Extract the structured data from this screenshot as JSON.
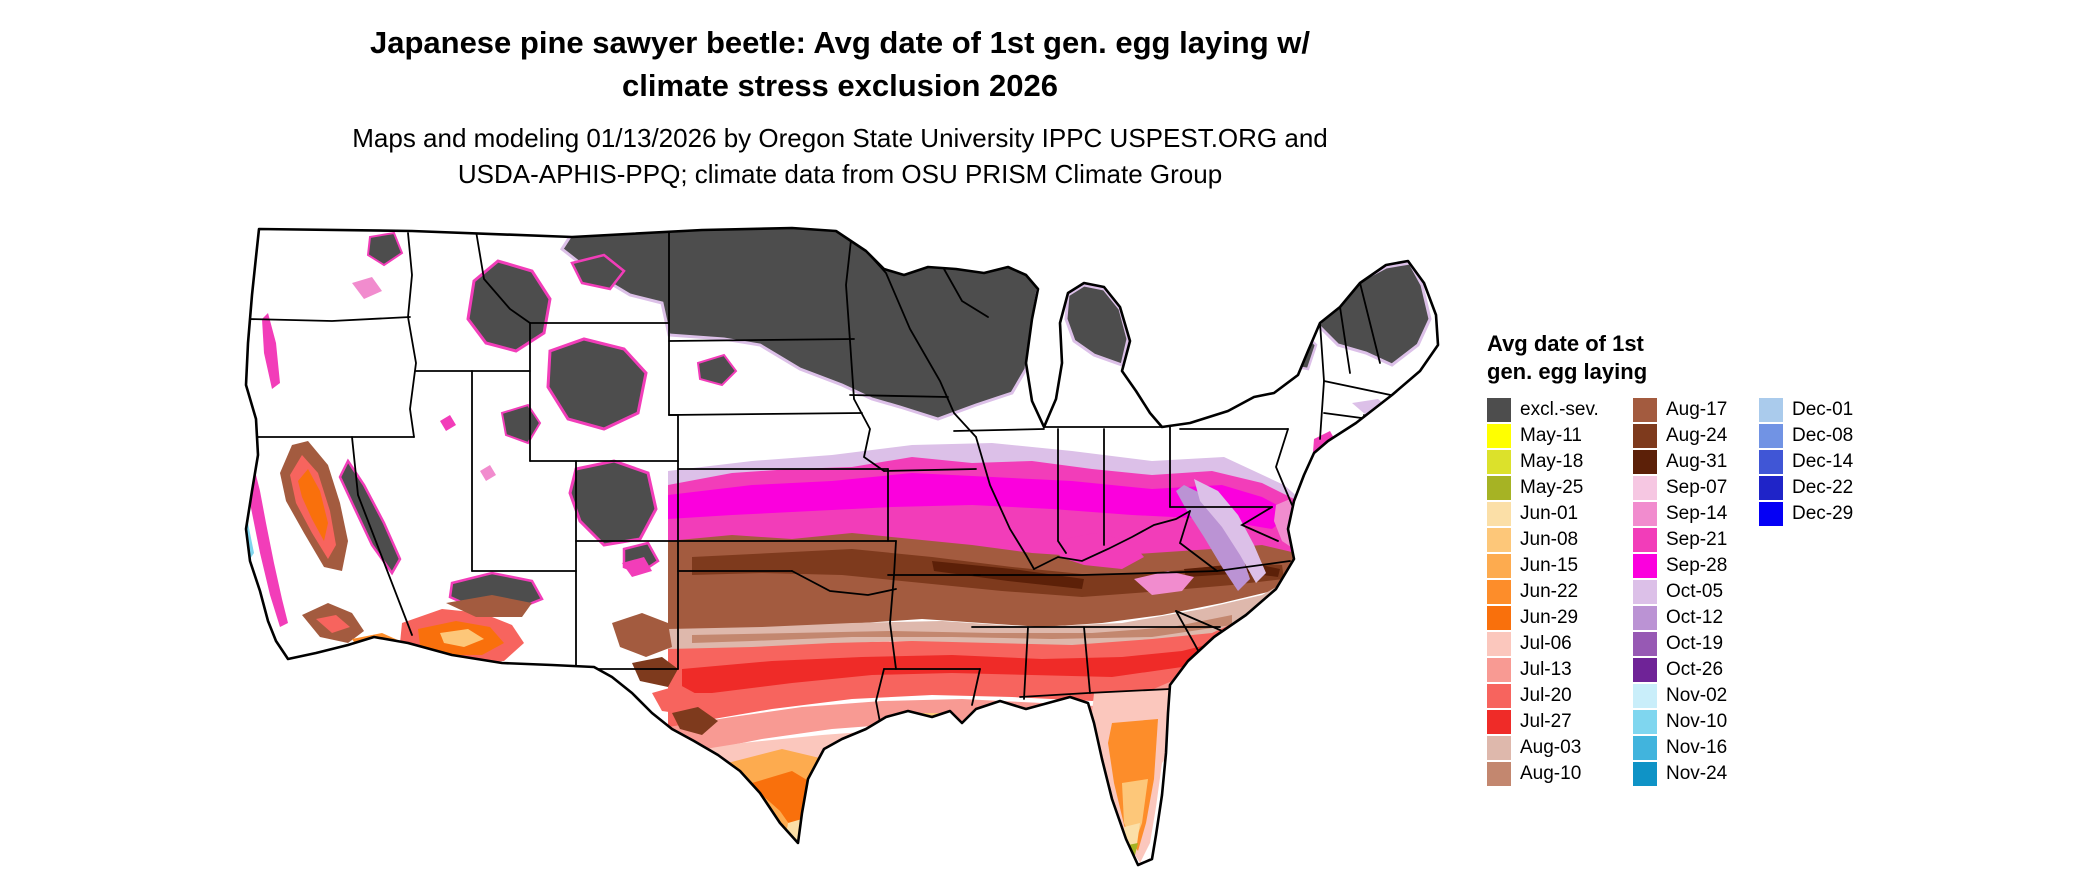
{
  "title": {
    "line1": "Japanese pine sawyer beetle: Avg date of 1st gen. egg laying w/",
    "line2": "climate stress exclusion 2026"
  },
  "subtitle": {
    "line1": "Maps and modeling 01/13/2026 by Oregon State University IPPC USPEST.ORG and",
    "line2": "USDA-APHIS-PPQ; climate data from OSU PRISM Climate Group"
  },
  "legend": {
    "title_line1": "Avg date of 1st",
    "title_line2": "gen. egg laying",
    "columns": [
      [
        {
          "label": "excl.-sev.",
          "color": "#4d4d4d"
        },
        {
          "label": "May-11",
          "color": "#ffff00"
        },
        {
          "label": "May-18",
          "color": "#dce12b"
        },
        {
          "label": "May-25",
          "color": "#a6b324"
        },
        {
          "label": "Jun-01",
          "color": "#fbdfa7"
        },
        {
          "label": "Jun-08",
          "color": "#fdc779"
        },
        {
          "label": "Jun-15",
          "color": "#fdab4f"
        },
        {
          "label": "Jun-22",
          "color": "#fd8d2a"
        },
        {
          "label": "Jun-29",
          "color": "#f9700c"
        },
        {
          "label": "Jul-06",
          "color": "#fbc7bd"
        },
        {
          "label": "Jul-13",
          "color": "#f89a93"
        },
        {
          "label": "Jul-20",
          "color": "#f7645e"
        },
        {
          "label": "Jul-27",
          "color": "#ef2b28"
        },
        {
          "label": "Aug-03",
          "color": "#deb8ac"
        },
        {
          "label": "Aug-10",
          "color": "#c3876f"
        }
      ],
      [
        {
          "label": "Aug-17",
          "color": "#a35b3f"
        },
        {
          "label": "Aug-24",
          "color": "#7e3a1d"
        },
        {
          "label": "Aug-31",
          "color": "#5c2008"
        },
        {
          "label": "Sep-07",
          "color": "#f6c7e2"
        },
        {
          "label": "Sep-14",
          "color": "#f18cce"
        },
        {
          "label": "Sep-21",
          "color": "#f23db9"
        },
        {
          "label": "Sep-28",
          "color": "#fb00dd"
        },
        {
          "label": "Oct-05",
          "color": "#dcc0e8"
        },
        {
          "label": "Oct-12",
          "color": "#bb93d4"
        },
        {
          "label": "Oct-19",
          "color": "#9759b4"
        },
        {
          "label": "Oct-26",
          "color": "#6f2397"
        },
        {
          "label": "Nov-02",
          "color": "#c9eefa"
        },
        {
          "label": "Nov-10",
          "color": "#7fd6ef"
        },
        {
          "label": "Nov-16",
          "color": "#41b4dd"
        },
        {
          "label": "Nov-24",
          "color": "#0f93c6"
        }
      ],
      [
        {
          "label": "Dec-01",
          "color": "#aacbec"
        },
        {
          "label": "Dec-08",
          "color": "#7193e4"
        },
        {
          "label": "Dec-14",
          "color": "#4056d6"
        },
        {
          "label": "Dec-22",
          "color": "#1f24c8"
        },
        {
          "label": "Dec-29",
          "color": "#0500f5"
        }
      ]
    ]
  },
  "map": {
    "background": "#ffffff",
    "border_color": "#000000"
  }
}
